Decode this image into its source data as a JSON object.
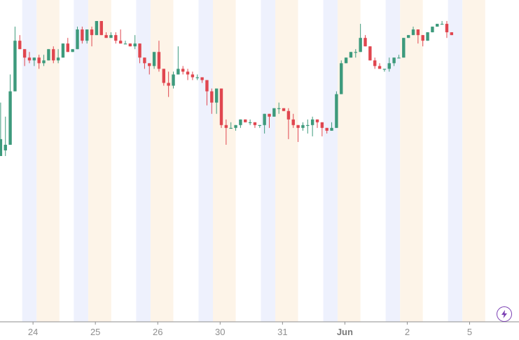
{
  "chart_data": {
    "type": "candlestick",
    "x_axis": {
      "tick_labels": [
        {
          "label": "24",
          "slot": 0.75
        },
        {
          "label": "25",
          "slot": 13.75
        },
        {
          "label": "26",
          "slot": 26.75
        },
        {
          "label": "30",
          "slot": 39.75
        },
        {
          "label": "31",
          "slot": 52.75
        },
        {
          "label": "Jun",
          "slot": 65.75,
          "major": true
        },
        {
          "label": "2",
          "slot": 78.75
        },
        {
          "label": "5",
          "slot": 91.75
        }
      ]
    },
    "y_axis": {
      "min": 0,
      "max": 100,
      "visible_labels": false
    },
    "session_bands": {
      "pre_market_color": "#eef1fd",
      "after_hours_color": "#fdf4e8",
      "days": [
        {
          "pre": [
            0,
            0.75
          ],
          "post": [
            2.25,
            3.5
          ],
          "start": -3.5
        },
        {
          "pre": [
            10.75,
            11.5
          ],
          "post": [
            13,
            14.3
          ],
          "start": 10.75
        },
        {
          "pre": [
            23.75,
            24.5
          ],
          "post": [
            26,
            27.25
          ],
          "start": 23.75
        },
        {
          "pre": [
            36.75,
            37.5
          ],
          "post": [
            39,
            40.25
          ],
          "start": 36.75
        },
        {
          "pre": [
            49.75,
            50.5
          ],
          "post": [
            52,
            53.25
          ],
          "start": 49.75
        },
        {
          "pre": [
            62.75,
            63.5
          ],
          "post": [
            65,
            66.25
          ],
          "start": 62.75
        },
        {
          "pre": [
            75.75,
            76.5
          ],
          "post": [
            78,
            79.25
          ],
          "start": 75.75
        },
        {
          "pre": [
            88.75,
            89.5
          ],
          "post": [
            91,
            92.25
          ],
          "start": 88.75
        }
      ]
    },
    "colors": {
      "up": "#3d9a7c",
      "down": "#e0464f",
      "axis": "#8e8e8e",
      "line": "#3b3b3b"
    },
    "candles": [
      [
        49,
        55,
        68,
        51
      ],
      [
        51,
        53,
        63,
        49
      ],
      [
        53,
        72,
        67,
        78
      ],
      [
        72,
        90,
        89,
        95
      ],
      [
        90,
        87,
        92,
        87
      ],
      [
        87,
        84,
        85,
        81
      ],
      [
        84,
        83,
        86,
        82
      ],
      [
        83,
        84,
        84,
        81
      ],
      [
        84,
        82,
        85,
        80
      ],
      [
        82,
        83,
        85,
        81
      ],
      [
        83,
        87,
        86,
        85
      ],
      [
        87,
        83,
        88,
        82
      ],
      [
        83,
        84,
        87,
        82
      ],
      [
        84,
        89,
        89,
        88
      ],
      [
        89,
        86,
        91,
        86
      ],
      [
        86,
        87,
        87,
        86
      ],
      [
        87,
        94,
        95,
        93
      ],
      [
        94,
        90,
        95,
        89
      ],
      [
        90,
        94,
        94,
        89
      ],
      [
        94,
        92,
        95,
        88
      ],
      [
        92,
        97,
        96,
        94
      ],
      [
        97,
        92,
        97,
        92
      ],
      [
        92,
        91,
        93,
        91
      ],
      [
        91,
        92,
        93,
        91
      ],
      [
        92,
        90,
        93,
        89
      ],
      [
        90,
        89,
        94,
        89
      ],
      [
        89,
        89,
        90,
        89
      ],
      [
        89,
        88,
        89,
        88
      ],
      [
        88,
        89,
        92,
        87
      ],
      [
        89,
        84,
        89,
        82
      ],
      [
        84,
        82,
        84,
        80
      ],
      [
        82,
        81,
        82,
        78
      ],
      [
        81,
        86,
        85,
        80
      ],
      [
        86,
        80,
        90,
        79
      ],
      [
        80,
        75,
        80,
        74
      ],
      [
        75,
        74,
        79,
        70
      ],
      [
        74,
        78,
        79,
        73
      ],
      [
        78,
        80,
        88,
        78
      ],
      [
        80,
        79,
        81,
        78
      ],
      [
        79,
        78,
        80,
        76
      ],
      [
        78,
        77,
        79,
        76
      ],
      [
        77,
        77,
        78,
        76
      ],
      [
        77,
        76,
        77,
        75
      ],
      [
        76,
        72,
        75,
        67
      ],
      [
        72,
        68,
        73,
        64
      ],
      [
        68,
        73,
        73,
        64
      ],
      [
        73,
        60,
        73,
        59
      ],
      [
        60,
        59,
        62,
        53
      ],
      [
        59,
        59,
        61,
        59
      ],
      [
        59,
        60,
        60,
        58
      ],
      [
        60,
        62,
        62,
        59
      ],
      [
        62,
        61,
        62,
        61
      ],
      [
        61,
        61,
        62,
        60
      ],
      [
        61,
        60,
        61,
        59
      ],
      [
        60,
        60,
        60,
        59
      ],
      [
        60,
        64,
        64,
        57
      ],
      [
        64,
        63,
        64,
        59
      ],
      [
        63,
        66,
        66,
        63
      ],
      [
        66,
        66,
        68,
        64
      ],
      [
        66,
        65,
        66,
        65
      ],
      [
        65,
        62,
        66,
        55
      ],
      [
        62,
        60,
        64,
        59
      ],
      [
        60,
        59,
        60,
        54
      ],
      [
        59,
        60,
        61,
        58
      ],
      [
        60,
        60,
        62,
        57
      ],
      [
        60,
        62,
        63,
        56
      ],
      [
        62,
        61,
        62,
        59
      ],
      [
        61,
        59,
        60,
        56
      ],
      [
        59,
        58,
        58,
        57
      ],
      [
        58,
        59,
        61,
        58
      ],
      [
        59,
        71,
        70,
        72
      ],
      [
        71,
        82,
        80,
        83
      ],
      [
        82,
        84,
        84,
        82
      ],
      [
        84,
        86,
        86,
        84
      ],
      [
        86,
        86,
        87,
        84
      ],
      [
        86,
        91,
        90,
        96
      ],
      [
        91,
        88,
        92,
        88
      ],
      [
        88,
        83,
        88,
        83
      ],
      [
        83,
        81,
        84,
        80
      ],
      [
        81,
        80,
        82,
        80
      ],
      [
        80,
        80,
        80,
        79
      ],
      [
        80,
        82,
        84,
        79
      ],
      [
        82,
        84,
        84,
        81
      ],
      [
        84,
        84,
        85,
        84
      ],
      [
        84,
        91,
        91,
        90
      ],
      [
        91,
        92,
        92,
        91
      ],
      [
        92,
        94,
        95,
        94
      ],
      [
        94,
        92,
        93,
        89
      ],
      [
        92,
        90,
        91,
        88
      ],
      [
        90,
        93,
        93,
        90
      ],
      [
        93,
        95,
        94,
        93
      ],
      [
        95,
        96,
        96,
        95
      ],
      [
        96,
        96,
        97,
        96
      ],
      [
        96,
        93,
        97,
        91
      ],
      [
        93,
        92,
        93,
        92
      ]
    ]
  }
}
